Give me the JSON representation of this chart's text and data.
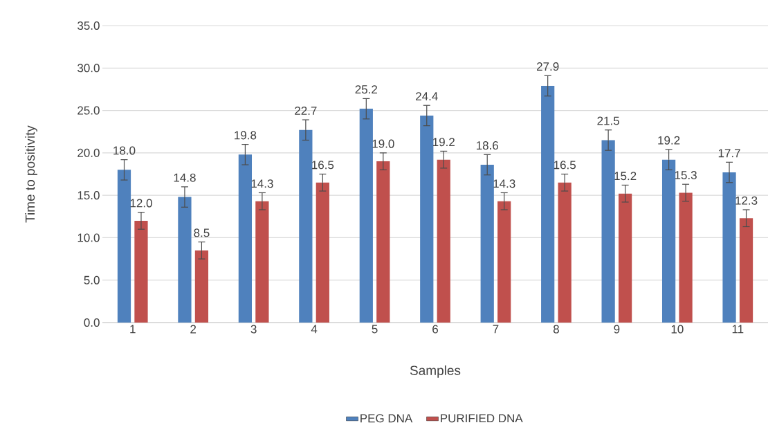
{
  "chart_data": {
    "type": "bar",
    "xlabel": "Samples",
    "ylabel": "Time to positivity",
    "categories": [
      "1",
      "2",
      "3",
      "4",
      "5",
      "6",
      "7",
      "8",
      "9",
      "10",
      "11"
    ],
    "series": [
      {
        "name": "PEG DNA",
        "color": "#4f81bd",
        "values": [
          18.0,
          14.8,
          19.8,
          22.7,
          25.2,
          24.4,
          18.6,
          27.9,
          21.5,
          19.2,
          17.7
        ],
        "errors": [
          1.2,
          1.2,
          1.2,
          1.2,
          1.2,
          1.2,
          1.2,
          1.2,
          1.2,
          1.2,
          1.2
        ],
        "value_labels": [
          "18.0",
          "14.8",
          "19.8",
          "22.7",
          "25.2",
          "24.4",
          "18.6",
          "27.9",
          "21.5",
          "19.2",
          "17.7"
        ]
      },
      {
        "name": "PURIFIED DNA",
        "color": "#c0504d",
        "values": [
          12.0,
          8.5,
          14.3,
          16.5,
          19.0,
          19.2,
          14.3,
          16.5,
          15.2,
          15.3,
          12.3
        ],
        "errors": [
          1.0,
          1.0,
          1.0,
          1.0,
          1.0,
          1.0,
          1.0,
          1.0,
          1.0,
          1.0,
          1.0
        ],
        "value_labels": [
          "12.0",
          "8.5",
          "14.3",
          "16.5",
          "19.0",
          "19.2",
          "14.3",
          "16.5",
          "15.2",
          "15.3",
          "12.3"
        ]
      }
    ],
    "ylim": [
      0,
      35
    ],
    "yticks": [
      {
        "value": 0,
        "label": "0.0"
      },
      {
        "value": 5,
        "label": "5.0"
      },
      {
        "value": 10,
        "label": "10.0"
      },
      {
        "value": 15,
        "label": "15.0"
      },
      {
        "value": 20,
        "label": "20.0"
      },
      {
        "value": 25,
        "label": "25.0"
      },
      {
        "value": 30,
        "label": "30.0"
      },
      {
        "value": 35,
        "label": "35.0"
      }
    ],
    "grid": "y",
    "legend": "bottom"
  }
}
